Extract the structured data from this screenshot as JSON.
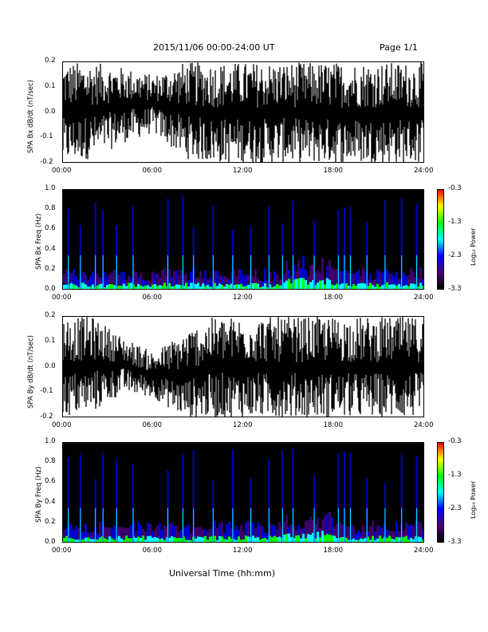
{
  "header": {
    "title": "2015/11/06  00:00-24:00 UT",
    "page": "Page 1/1"
  },
  "xaxis_title": "Universal Time (hh:mm)",
  "colors": {
    "trace": "#000000",
    "spec_bg": "#000000",
    "axis": "#000000"
  },
  "colorbar": {
    "label": "Log₁₀ Power",
    "ticks": [
      "-0.3",
      "-1.3",
      "-2.3",
      "-3.3"
    ],
    "colors": [
      "#ff0000",
      "#ffff00",
      "#00ff00",
      "#00ffff",
      "#0000ff",
      "#4b0082",
      "#000000"
    ]
  },
  "chart_data": [
    {
      "type": "line",
      "title": "",
      "ylabel": "SPA Bx dB/dt (nT/sec)",
      "xlabel": "",
      "xlim": [
        "00:00",
        "24:00"
      ],
      "ylim": [
        -0.2,
        0.2
      ],
      "xticks": [
        "00:00",
        "06:00",
        "12:00",
        "18:00",
        "24:00"
      ],
      "yticks": [
        "0.2",
        "0.1",
        "0.0",
        "-0.1",
        "-0.2"
      ],
      "series": [
        {
          "values_hours": [
            0,
            2,
            4,
            6,
            8,
            10,
            12,
            14,
            16,
            18,
            20,
            22,
            24
          ],
          "upper_envelope": [
            0.2,
            0.2,
            0.18,
            0.15,
            0.2,
            0.2,
            0.2,
            0.2,
            0.2,
            0.2,
            0.2,
            0.2,
            0.2
          ],
          "lower_envelope": [
            -0.2,
            -0.18,
            -0.12,
            -0.08,
            -0.18,
            -0.2,
            -0.2,
            -0.2,
            -0.2,
            -0.2,
            -0.2,
            -0.2,
            -0.2
          ]
        }
      ]
    },
    {
      "type": "heatmap",
      "title": "",
      "ylabel": "SPA Bx Freq (Hz)",
      "xlabel": "",
      "xlim": [
        "00:00",
        "24:00"
      ],
      "ylim": [
        0.0,
        1.0
      ],
      "xticks": [
        "00:00",
        "06:00",
        "12:00",
        "18:00",
        "24:00"
      ],
      "yticks": [
        "1.0",
        "0.8",
        "0.6",
        "0.4",
        "0.2",
        "0.0"
      ],
      "color_range": [
        -3.3,
        -0.3
      ],
      "bursts_hours": [
        0.3,
        1.1,
        2.1,
        2.6,
        3.5,
        4.6,
        6.9,
        7.9,
        8.6,
        9.9,
        11.2,
        12.4,
        13.6,
        14.5,
        15.2,
        16.6,
        18.2,
        18.6,
        19.0,
        20.1,
        21.3,
        22.4,
        23.4
      ]
    },
    {
      "type": "line",
      "title": "",
      "ylabel": "SPA By dB/dt (nT/sec)",
      "xlabel": "",
      "xlim": [
        "00:00",
        "24:00"
      ],
      "ylim": [
        -0.2,
        0.2
      ],
      "xticks": [
        "00:00",
        "06:00",
        "12:00",
        "18:00",
        "24:00"
      ],
      "yticks": [
        "0.2",
        "0.1",
        "0.0",
        "-0.1",
        "-0.2"
      ],
      "series": [
        {
          "values_hours": [
            0,
            2,
            4,
            6,
            8,
            10,
            12,
            14,
            16,
            18,
            20,
            22,
            24
          ],
          "upper_envelope": [
            0.2,
            0.2,
            0.12,
            0.06,
            0.14,
            0.2,
            0.2,
            0.2,
            0.2,
            0.2,
            0.2,
            0.2,
            0.2
          ],
          "lower_envelope": [
            -0.2,
            -0.18,
            -0.1,
            -0.12,
            -0.2,
            -0.2,
            -0.2,
            -0.2,
            -0.2,
            -0.2,
            -0.2,
            -0.2,
            -0.2
          ]
        }
      ]
    },
    {
      "type": "heatmap",
      "title": "",
      "ylabel": "SPA By Freq (Hz)",
      "xlabel": "",
      "xlim": [
        "00:00",
        "24:00"
      ],
      "ylim": [
        0.0,
        1.0
      ],
      "xticks": [
        "00:00",
        "06:00",
        "12:00",
        "18:00",
        "24:00"
      ],
      "yticks": [
        "1.0",
        "0.8",
        "0.6",
        "0.4",
        "0.2",
        "0.0"
      ],
      "color_range": [
        -3.3,
        -0.3
      ],
      "bursts_hours": [
        0.3,
        1.1,
        2.1,
        2.6,
        3.5,
        4.6,
        6.9,
        7.9,
        8.6,
        9.9,
        11.2,
        12.4,
        13.6,
        14.5,
        15.2,
        16.6,
        18.2,
        18.6,
        19.0,
        20.1,
        21.3,
        22.4,
        23.4
      ]
    }
  ]
}
